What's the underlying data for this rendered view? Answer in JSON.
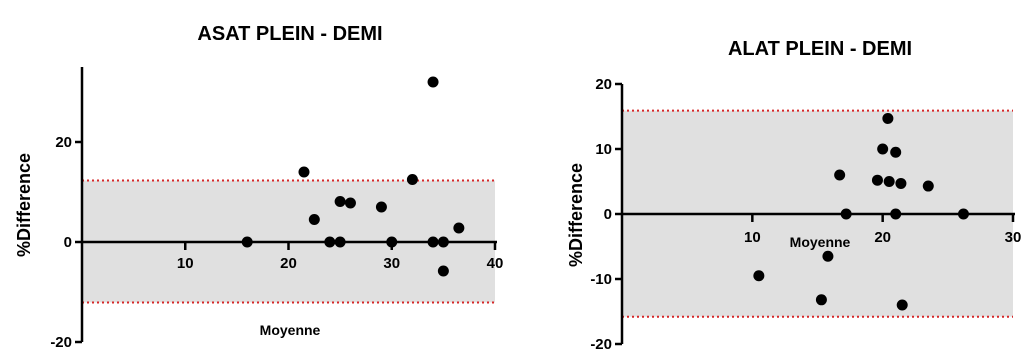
{
  "chart_data": [
    {
      "type": "scatter",
      "title": "ASAT PLEIN - DEMI",
      "xlabel": "Moyenne",
      "ylabel": "%Difference",
      "xlim": [
        0,
        40
      ],
      "ylim": [
        -20,
        35
      ],
      "xticks": [
        10,
        20,
        30,
        40
      ],
      "yticks": [
        -20,
        0,
        20
      ],
      "limits_of_agreement": {
        "upper": 12.3,
        "lower": -12.1,
        "band_color": "#e0e0e0",
        "line_color": "#d62728"
      },
      "series": [
        {
          "points": [
            {
              "x": 16.0,
              "y": 0
            },
            {
              "x": 21.5,
              "y": 14
            },
            {
              "x": 22.5,
              "y": 4.5
            },
            {
              "x": 24.0,
              "y": 0
            },
            {
              "x": 25.0,
              "y": 8.1
            },
            {
              "x": 25.0,
              "y": 0
            },
            {
              "x": 26.0,
              "y": 7.8
            },
            {
              "x": 29.0,
              "y": 7.0
            },
            {
              "x": 30.0,
              "y": 0
            },
            {
              "x": 32.0,
              "y": 12.5
            },
            {
              "x": 34.0,
              "y": 32
            },
            {
              "x": 34.0,
              "y": 0
            },
            {
              "x": 35.0,
              "y": 0
            },
            {
              "x": 35.0,
              "y": -5.8
            },
            {
              "x": 36.5,
              "y": 2.8
            }
          ]
        }
      ]
    },
    {
      "type": "scatter",
      "title": "ALAT PLEIN - DEMI",
      "xlabel": "Moyenne",
      "ylabel": "%Difference",
      "xlim": [
        0,
        30
      ],
      "ylim": [
        -20,
        20
      ],
      "xticks": [
        10,
        20,
        30
      ],
      "yticks": [
        -20,
        -10,
        0,
        10,
        20
      ],
      "limits_of_agreement": {
        "upper": 15.9,
        "lower": -15.8,
        "band_color": "#e0e0e0",
        "line_color": "#d62728"
      },
      "series": [
        {
          "points": [
            {
              "x": 10.5,
              "y": -9.5
            },
            {
              "x": 15.3,
              "y": -13.2
            },
            {
              "x": 15.8,
              "y": -6.5
            },
            {
              "x": 16.7,
              "y": 6.0
            },
            {
              "x": 17.2,
              "y": 0
            },
            {
              "x": 19.6,
              "y": 5.2
            },
            {
              "x": 20.0,
              "y": 10.0
            },
            {
              "x": 20.4,
              "y": 14.7
            },
            {
              "x": 20.5,
              "y": 5.0
            },
            {
              "x": 21.0,
              "y": 9.5
            },
            {
              "x": 21.0,
              "y": 0
            },
            {
              "x": 21.4,
              "y": 4.7
            },
            {
              "x": 21.5,
              "y": -14.0
            },
            {
              "x": 23.5,
              "y": 4.3
            },
            {
              "x": 26.2,
              "y": 0
            }
          ]
        }
      ]
    }
  ]
}
